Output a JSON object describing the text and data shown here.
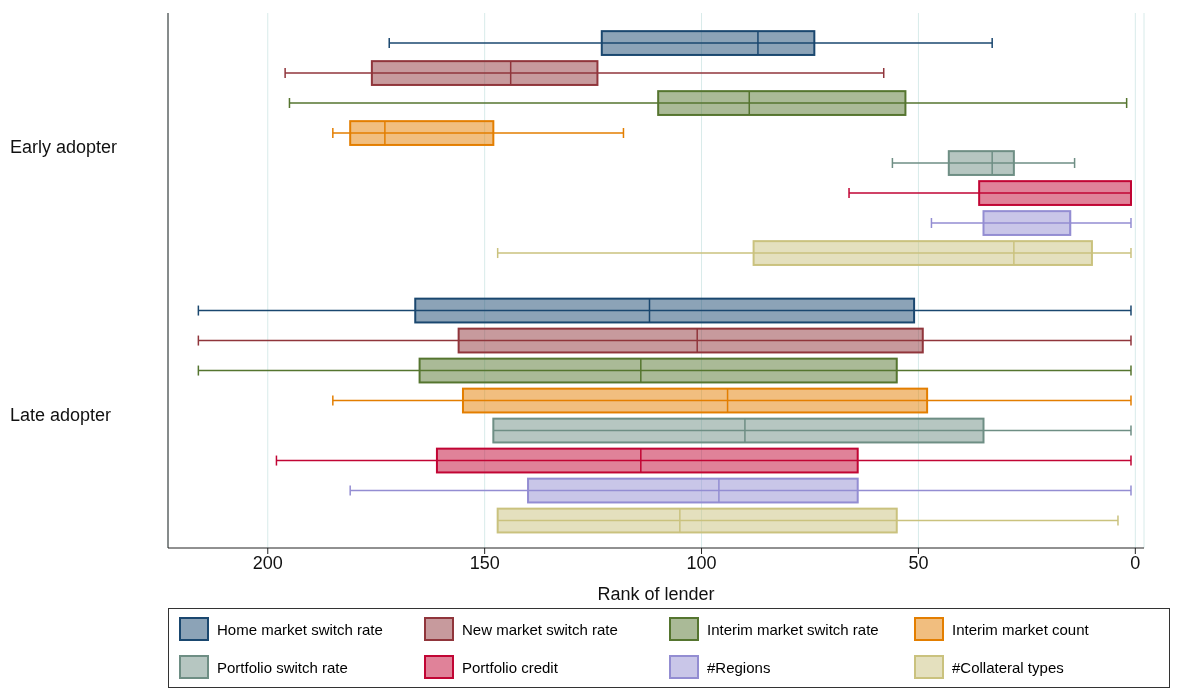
{
  "chart_data": {
    "type": "box",
    "orientation": "horizontal",
    "categories": [
      "Early adopter",
      "Late adopter"
    ],
    "xlabel": "Rank of lender",
    "xlim": [
      223,
      -2
    ],
    "xticks": [
      200,
      150,
      100,
      50,
      0
    ],
    "grid": "x",
    "legend": "bottom",
    "series": [
      {
        "name": "Home market switch rate",
        "color": "#1a476f",
        "boxes": [
          {
            "low": 33,
            "q1": 74,
            "median": 87,
            "q3": 123,
            "high": 172
          },
          {
            "low": 1,
            "q1": 51,
            "median": 112,
            "q3": 166,
            "high": 216
          }
        ]
      },
      {
        "name": "New market switch rate",
        "color": "#90353b",
        "boxes": [
          {
            "low": 58,
            "q1": 124,
            "median": 144,
            "q3": 176,
            "high": 196
          },
          {
            "low": 1,
            "q1": 49,
            "median": 101,
            "q3": 156,
            "high": 216
          }
        ]
      },
      {
        "name": "Interim market switch rate",
        "color": "#55752f",
        "boxes": [
          {
            "low": 2,
            "q1": 53,
            "median": 89,
            "q3": 110,
            "high": 195
          },
          {
            "low": 1,
            "q1": 55,
            "median": 114,
            "q3": 165,
            "high": 216
          }
        ]
      },
      {
        "name": "Interim market count",
        "color": "#e37e00",
        "boxes": [
          {
            "low": 118,
            "q1": 148,
            "median": 173,
            "q3": 181,
            "high": 185
          },
          {
            "low": 1,
            "q1": 48,
            "median": 94,
            "q3": 155,
            "high": 185
          }
        ]
      },
      {
        "name": "Portfolio switch rate",
        "color": "#6e8e84",
        "boxes": [
          {
            "low": 14,
            "q1": 28,
            "median": 33,
            "q3": 43,
            "high": 56
          },
          {
            "low": 1,
            "q1": 35,
            "median": 90,
            "q3": 148,
            "high": 148
          }
        ]
      },
      {
        "name": "Portfolio credit",
        "color": "#c10534",
        "boxes": [
          {
            "low": 1,
            "q1": 1,
            "median": 1,
            "q3": 36,
            "high": 66
          },
          {
            "low": 1,
            "q1": 64,
            "median": 114,
            "q3": 161,
            "high": 198
          }
        ]
      },
      {
        "name": "#Regions",
        "color": "#938dd2",
        "boxes": [
          {
            "low": 1,
            "q1": 15,
            "median": 15,
            "q3": 35,
            "high": 47
          },
          {
            "low": 1,
            "q1": 64,
            "median": 96,
            "q3": 140,
            "high": 181
          }
        ]
      },
      {
        "name": "#Collateral types",
        "color": "#cac27e",
        "boxes": [
          {
            "low": 1,
            "q1": 10,
            "median": 28,
            "q3": 88,
            "high": 147
          },
          {
            "low": 4,
            "q1": 55,
            "median": 105,
            "q3": 147,
            "high": 147
          }
        ]
      }
    ]
  }
}
